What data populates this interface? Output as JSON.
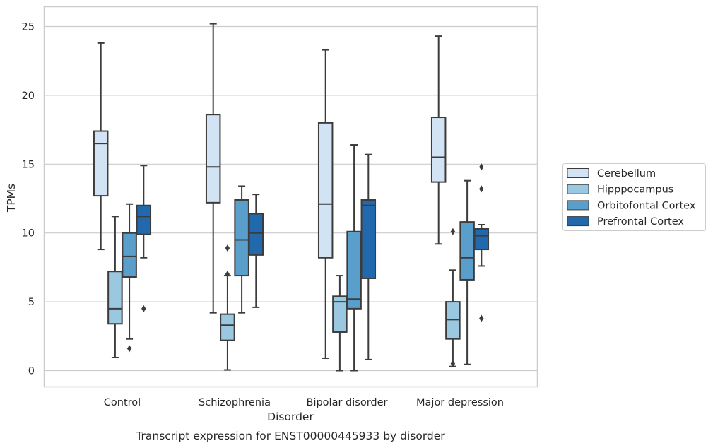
{
  "chart_data": {
    "type": "boxplot",
    "xlabel": "Disorder",
    "ylabel": "TPMs",
    "caption": "Transcript expression for ENST00000445933 by disorder",
    "ylim": [
      -1.2,
      26.4
    ],
    "yticks": [
      0,
      5,
      10,
      15,
      20,
      25
    ],
    "grid": true,
    "legend_position": "right",
    "categories": [
      "Control",
      "Schizophrenia",
      "Bipolar disorder",
      "Major depression"
    ],
    "series": [
      {
        "name": "Cerebellum",
        "color": "#d2e3f3",
        "boxes": [
          {
            "min": 8.8,
            "q1": 12.7,
            "median": 16.5,
            "q3": 17.4,
            "max": 23.8,
            "outliers": []
          },
          {
            "min": 4.2,
            "q1": 12.2,
            "median": 14.8,
            "q3": 18.6,
            "max": 25.2,
            "outliers": []
          },
          {
            "min": 0.9,
            "q1": 8.2,
            "median": 12.1,
            "q3": 18.0,
            "max": 23.3,
            "outliers": []
          },
          {
            "min": 9.2,
            "q1": 13.7,
            "median": 15.5,
            "q3": 18.4,
            "max": 24.3,
            "outliers": []
          }
        ]
      },
      {
        "name": "Hipppocampus",
        "color": "#9ac8e0",
        "boxes": [
          {
            "min": 0.95,
            "q1": 3.4,
            "median": 4.5,
            "q3": 7.2,
            "max": 11.2,
            "outliers": []
          },
          {
            "min": 0.05,
            "q1": 2.2,
            "median": 3.3,
            "q3": 4.1,
            "max": 6.9,
            "outliers": [
              8.9,
              7.0
            ]
          },
          {
            "min": 0.0,
            "q1": 2.8,
            "median": 5.0,
            "q3": 5.4,
            "max": 6.9,
            "outliers": []
          },
          {
            "min": 0.3,
            "q1": 2.3,
            "median": 3.7,
            "q3": 5.0,
            "max": 7.3,
            "outliers": [
              0.5,
              10.1
            ]
          }
        ]
      },
      {
        "name": "Orbitofontal Cortex",
        "color": "#5a9ecc",
        "boxes": [
          {
            "min": 2.3,
            "q1": 6.8,
            "median": 8.3,
            "q3": 10.0,
            "max": 12.1,
            "outliers": [
              1.6
            ]
          },
          {
            "min": 4.2,
            "q1": 6.9,
            "median": 9.5,
            "q3": 12.4,
            "max": 13.4,
            "outliers": []
          },
          {
            "min": 0.0,
            "q1": 4.5,
            "median": 5.2,
            "q3": 10.1,
            "max": 16.4,
            "outliers": []
          },
          {
            "min": 0.45,
            "q1": 6.6,
            "median": 8.2,
            "q3": 10.8,
            "max": 13.8,
            "outliers": []
          }
        ]
      },
      {
        "name": "Prefrontal Cortex",
        "color": "#2268ac",
        "boxes": [
          {
            "min": 8.2,
            "q1": 9.9,
            "median": 11.2,
            "q3": 12.0,
            "max": 14.9,
            "outliers": [
              4.5
            ]
          },
          {
            "min": 4.6,
            "q1": 8.4,
            "median": 10.0,
            "q3": 11.4,
            "max": 12.8,
            "outliers": []
          },
          {
            "min": 0.8,
            "q1": 6.7,
            "median": 12.0,
            "q3": 12.4,
            "max": 15.7,
            "outliers": []
          },
          {
            "min": 7.6,
            "q1": 8.8,
            "median": 9.8,
            "q3": 10.3,
            "max": 10.6,
            "outliers": [
              14.8,
              13.2,
              3.8
            ]
          }
        ]
      }
    ]
  }
}
